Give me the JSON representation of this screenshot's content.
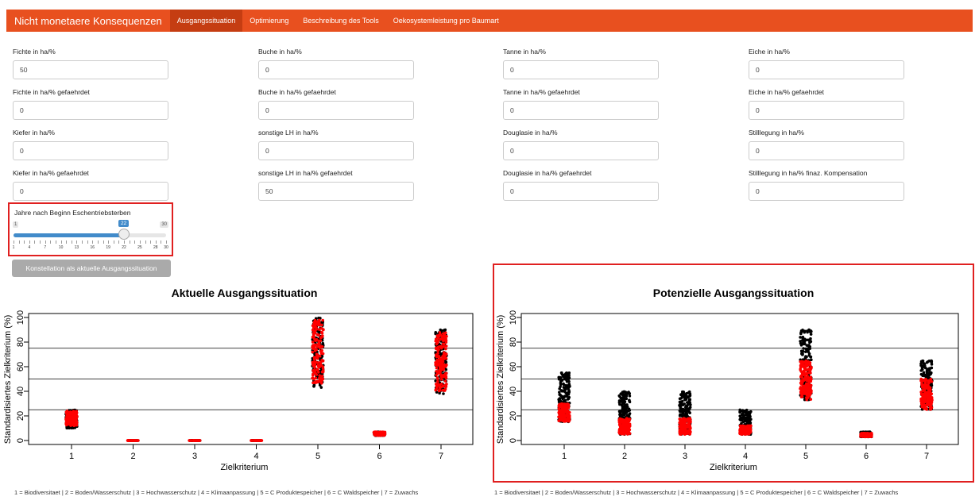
{
  "navbar": {
    "brand": "Nicht monetaere Konsequenzen",
    "tabs": [
      "Ausgangssituation",
      "Optimierung",
      "Beschreibung des Tools",
      "Oekosystemleistung pro Baumart"
    ]
  },
  "fields": [
    {
      "label": "Fichte in ha/%",
      "value": "50"
    },
    {
      "label": "Buche in ha/%",
      "value": "0"
    },
    {
      "label": "Tanne in ha/%",
      "value": "0"
    },
    {
      "label": "Eiche in ha/%",
      "value": "0"
    },
    {
      "label": "Fichte in ha/% gefaehrdet",
      "value": "0"
    },
    {
      "label": "Buche in ha/% gefaehrdet",
      "value": "0"
    },
    {
      "label": "Tanne in ha/% gefaehrdet",
      "value": "0"
    },
    {
      "label": "Eiche in ha/% gefaehrdet",
      "value": "0"
    },
    {
      "label": "Kiefer in ha/%",
      "value": "0"
    },
    {
      "label": "sonstige LH in ha/%",
      "value": "0"
    },
    {
      "label": "Douglasie in ha/%",
      "value": "0"
    },
    {
      "label": "Stilllegung in ha/%",
      "value": "0"
    },
    {
      "label": "Kiefer in ha/% gefaehrdet",
      "value": "0"
    },
    {
      "label": "sonstige LH in ha/% gefaehrdet",
      "value": "50"
    },
    {
      "label": "Douglasie in ha/% gefaehrdet",
      "value": "0"
    },
    {
      "label": "Stilllegung in ha/% finaz. Kompensation",
      "value": "0"
    }
  ],
  "slider": {
    "label": "Jahre nach Beginn Eschentriebsterben",
    "min": "1",
    "max": "30",
    "value": "22",
    "value_num": 22,
    "min_num": 1,
    "max_num": 30,
    "ticks": [
      "1",
      "4",
      "7",
      "10",
      "13",
      "16",
      "19",
      "22",
      "25",
      "28",
      "30"
    ]
  },
  "apply_button": "Konstellation als aktuelle Ausgangssituation",
  "caption": "1 = Biodiversitaet | 2 = Boden/Wasserschutz | 3 = Hochwasserschutz | 4 = Klimaanpassung | 5 = C Produktespeicher | 6 = C Waldspeicher | 7 = Zuwachs",
  "colors": {
    "black_series": "#000000",
    "red_series": "#ff0000",
    "accent": "#e8501f"
  },
  "chart_data": [
    {
      "type": "scatter",
      "title": "Aktuelle Ausgangssituation",
      "xlabel": "Zielkriterium",
      "ylabel": "Standardisiertes Zielkriterium (%)",
      "x_ticks": [
        "1",
        "2",
        "3",
        "4",
        "5",
        "6",
        "7"
      ],
      "y_ticks": [
        "0",
        "20",
        "40",
        "60",
        "80",
        "100"
      ],
      "ylim": [
        0,
        100
      ],
      "hlines": [
        25,
        50,
        75
      ],
      "series": [
        {
          "color": "black",
          "ranges": [
            [
              1,
              10,
              25
            ],
            [
              2,
              0,
              0
            ],
            [
              3,
              0,
              0
            ],
            [
              4,
              0,
              0
            ],
            [
              5,
              43,
              100
            ],
            [
              6,
              4,
              7
            ],
            [
              7,
              38,
              90
            ]
          ]
        },
        {
          "color": "red",
          "ranges": [
            [
              1,
              12,
              24
            ],
            [
              2,
              0,
              0
            ],
            [
              3,
              0,
              0
            ],
            [
              4,
              0,
              0
            ],
            [
              5,
              45,
              98
            ],
            [
              6,
              4,
              7
            ],
            [
              7,
              40,
              88
            ]
          ]
        }
      ]
    },
    {
      "type": "scatter",
      "title": "Potenzielle Ausgangssituation",
      "xlabel": "Zielkriterium",
      "ylabel": "Standardisiertes Zielkriterium (%)",
      "x_ticks": [
        "1",
        "2",
        "3",
        "4",
        "5",
        "6",
        "7"
      ],
      "y_ticks": [
        "0",
        "20",
        "40",
        "60",
        "80",
        "100"
      ],
      "ylim": [
        0,
        100
      ],
      "hlines": [
        25,
        50,
        75
      ],
      "series": [
        {
          "color": "black",
          "ranges": [
            [
              1,
              15,
              55
            ],
            [
              2,
              5,
              40
            ],
            [
              3,
              5,
              40
            ],
            [
              4,
              5,
              25
            ],
            [
              5,
              33,
              90
            ],
            [
              6,
              3,
              7
            ],
            [
              7,
              25,
              65
            ]
          ]
        },
        {
          "color": "red",
          "ranges": [
            [
              1,
              15,
              30
            ],
            [
              2,
              5,
              18
            ],
            [
              3,
              5,
              18
            ],
            [
              4,
              5,
              12
            ],
            [
              5,
              33,
              65
            ],
            [
              6,
              3,
              6
            ],
            [
              7,
              25,
              50
            ]
          ]
        }
      ]
    }
  ]
}
